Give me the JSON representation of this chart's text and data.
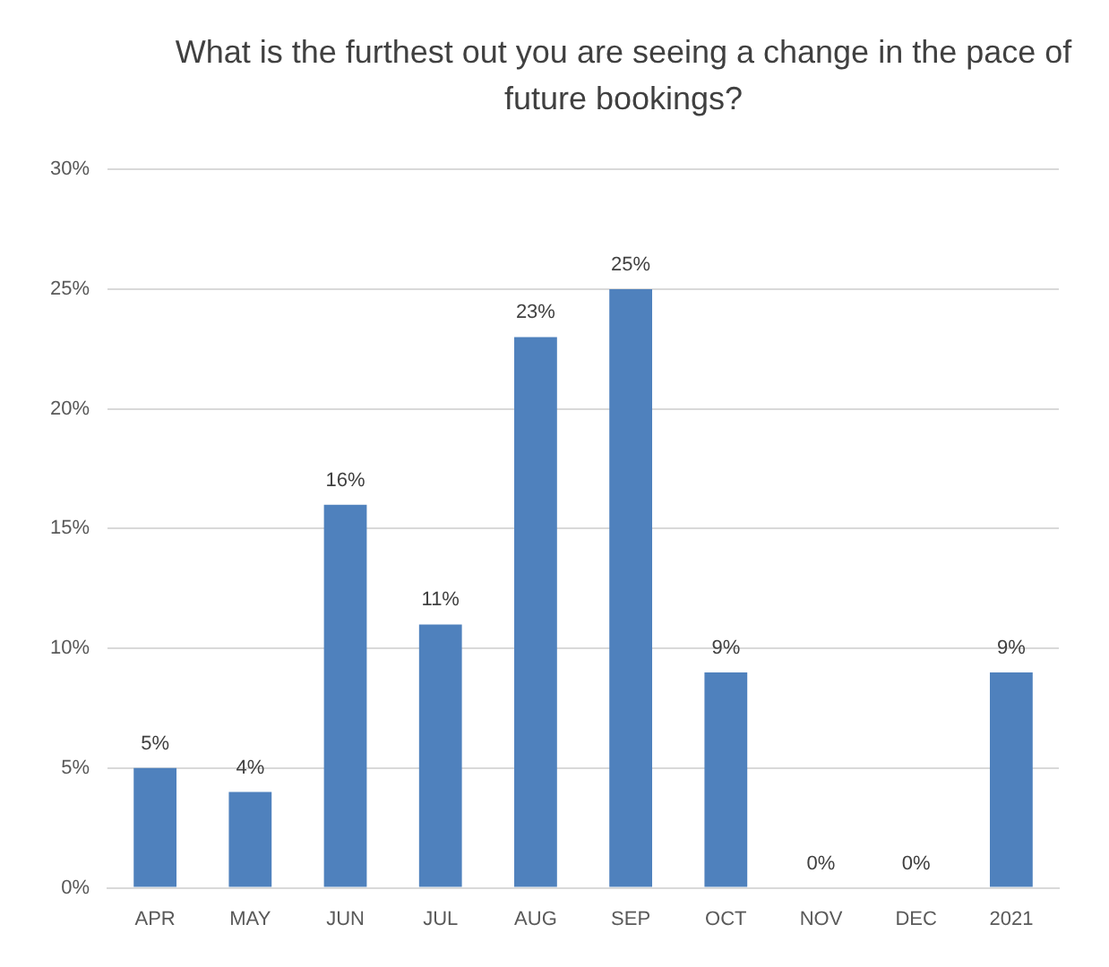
{
  "chart_data": {
    "type": "bar",
    "title": "What is the furthest out you are seeing a change in the pace of future bookings?",
    "categories": [
      "APR",
      "MAY",
      "JUN",
      "JUL",
      "AUG",
      "SEP",
      "OCT",
      "NOV",
      "DEC",
      "2021"
    ],
    "values": [
      5,
      4,
      16,
      11,
      23,
      25,
      9,
      0,
      0,
      9
    ],
    "value_labels": [
      "5%",
      "4%",
      "16%",
      "11%",
      "23%",
      "25%",
      "9%",
      "0%",
      "0%",
      "9%"
    ],
    "color": "#4f81bd",
    "ylim": [
      0,
      30
    ],
    "yticks": [
      {
        "value": 0,
        "label": "0%"
      },
      {
        "value": 5,
        "label": "5%"
      },
      {
        "value": 10,
        "label": "10%"
      },
      {
        "value": 15,
        "label": "15%"
      },
      {
        "value": 20,
        "label": "20%"
      },
      {
        "value": 25,
        "label": "25%"
      },
      {
        "value": 30,
        "label": "30%"
      }
    ],
    "grid": "y"
  }
}
